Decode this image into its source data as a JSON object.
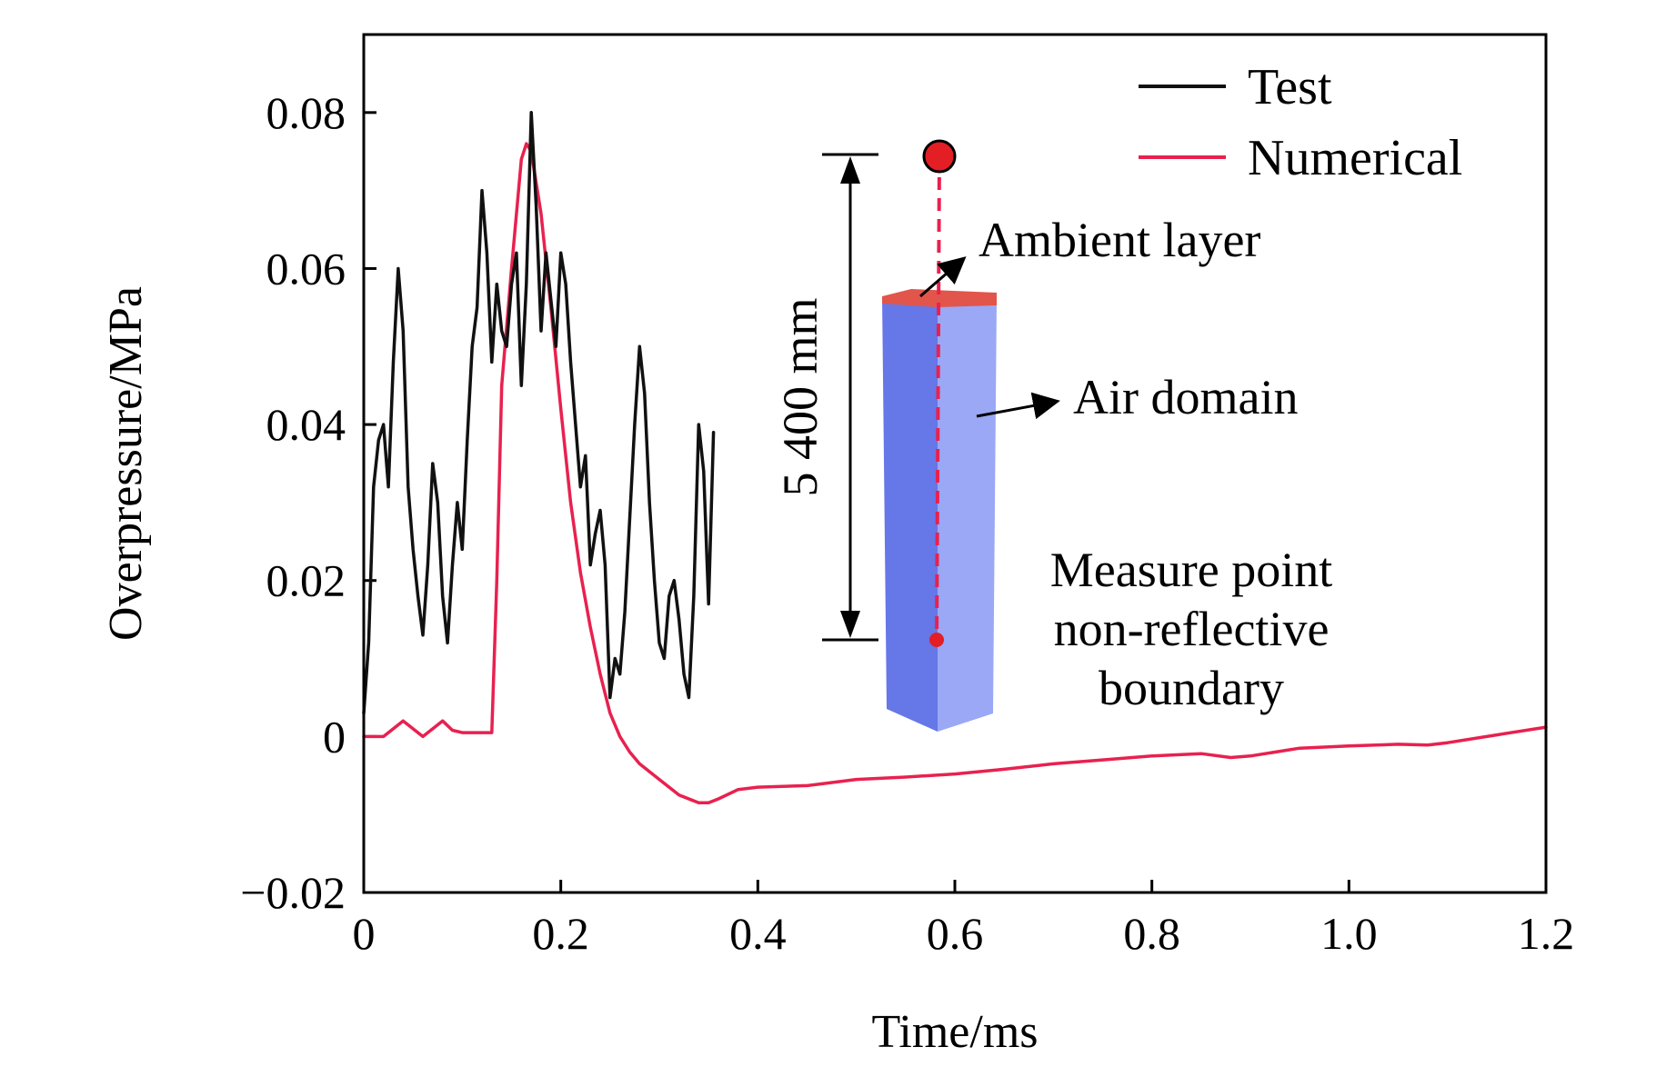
{
  "chart_data": {
    "type": "line",
    "title": "",
    "xlabel": "Time/ms",
    "ylabel": "Overpressure/MPa",
    "xlim": [
      0,
      1.2
    ],
    "ylim": [
      -0.02,
      0.09
    ],
    "xticks": [
      0,
      0.2,
      0.4,
      0.6,
      0.8,
      1.0,
      1.2
    ],
    "xtick_labels": [
      "0",
      "0.2",
      "0.4",
      "0.6",
      "0.8",
      "1.0",
      "1.2"
    ],
    "yticks": [
      -0.02,
      0,
      0.02,
      0.04,
      0.06,
      0.08
    ],
    "ytick_labels": [
      "−0.02",
      "0",
      "0.02",
      "0.04",
      "0.06",
      "0.08"
    ],
    "legend_position": "top-right",
    "series": [
      {
        "name": "Test",
        "color": "#111111",
        "x": [
          0,
          0.005,
          0.01,
          0.015,
          0.02,
          0.025,
          0.03,
          0.035,
          0.04,
          0.045,
          0.05,
          0.055,
          0.06,
          0.065,
          0.07,
          0.075,
          0.08,
          0.085,
          0.09,
          0.095,
          0.1,
          0.105,
          0.11,
          0.115,
          0.12,
          0.125,
          0.13,
          0.135,
          0.14,
          0.145,
          0.15,
          0.155,
          0.16,
          0.165,
          0.17,
          0.175,
          0.18,
          0.185,
          0.19,
          0.195,
          0.2,
          0.205,
          0.21,
          0.215,
          0.22,
          0.225,
          0.23,
          0.235,
          0.24,
          0.245,
          0.25,
          0.255,
          0.26,
          0.265,
          0.27,
          0.275,
          0.28,
          0.285,
          0.29,
          0.295,
          0.3,
          0.305,
          0.31,
          0.315,
          0.32,
          0.325,
          0.33,
          0.335,
          0.34,
          0.345,
          0.35,
          0.355
        ],
        "y": [
          0.003,
          0.012,
          0.032,
          0.038,
          0.04,
          0.032,
          0.048,
          0.06,
          0.052,
          0.032,
          0.024,
          0.018,
          0.013,
          0.022,
          0.035,
          0.03,
          0.018,
          0.012,
          0.022,
          0.03,
          0.024,
          0.038,
          0.05,
          0.055,
          0.07,
          0.062,
          0.048,
          0.058,
          0.052,
          0.05,
          0.058,
          0.062,
          0.045,
          0.058,
          0.08,
          0.068,
          0.052,
          0.062,
          0.056,
          0.05,
          0.062,
          0.058,
          0.048,
          0.04,
          0.032,
          0.036,
          0.022,
          0.026,
          0.029,
          0.022,
          0.005,
          0.01,
          0.008,
          0.016,
          0.028,
          0.04,
          0.05,
          0.044,
          0.03,
          0.02,
          0.012,
          0.01,
          0.018,
          0.02,
          0.015,
          0.008,
          0.005,
          0.018,
          0.04,
          0.034,
          0.017,
          0.039
        ]
      },
      {
        "name": "Numerical",
        "color": "#e8214f",
        "x": [
          0,
          0.02,
          0.04,
          0.06,
          0.08,
          0.09,
          0.1,
          0.13,
          0.135,
          0.14,
          0.15,
          0.16,
          0.165,
          0.17,
          0.18,
          0.19,
          0.2,
          0.21,
          0.22,
          0.23,
          0.24,
          0.25,
          0.26,
          0.27,
          0.28,
          0.3,
          0.32,
          0.34,
          0.35,
          0.36,
          0.38,
          0.4,
          0.45,
          0.5,
          0.55,
          0.6,
          0.65,
          0.7,
          0.75,
          0.8,
          0.85,
          0.88,
          0.9,
          0.95,
          1.0,
          1.05,
          1.08,
          1.1,
          1.15,
          1.2
        ],
        "y": [
          0,
          0,
          0.002,
          0,
          0.002,
          0.0008,
          0.0005,
          0.0005,
          0.02,
          0.045,
          0.06,
          0.074,
          0.076,
          0.075,
          0.067,
          0.055,
          0.042,
          0.03,
          0.021,
          0.014,
          0.008,
          0.003,
          0,
          -0.002,
          -0.0035,
          -0.0055,
          -0.0075,
          -0.0085,
          -0.0085,
          -0.008,
          -0.0068,
          -0.0065,
          -0.0063,
          -0.0055,
          -0.0052,
          -0.0048,
          -0.0042,
          -0.0035,
          -0.003,
          -0.0025,
          -0.0022,
          -0.0027,
          -0.0025,
          -0.0015,
          -0.0012,
          -0.001,
          -0.0011,
          -0.0008,
          0.0002,
          0.0012
        ]
      }
    ]
  },
  "inset": {
    "dimension_label": "5 400 mm",
    "labels": {
      "ambient_layer": "Ambient layer",
      "air_domain": "Air domain",
      "measure_line1": "Measure point",
      "measure_line2": "non-reflective",
      "measure_line3": "boundary"
    },
    "colors": {
      "column_front": "#9aa8f5",
      "column_side": "#6677e8",
      "top_layer": "#e2554a",
      "marker": "#e31e24",
      "dashed_line": "#e8214f"
    }
  }
}
